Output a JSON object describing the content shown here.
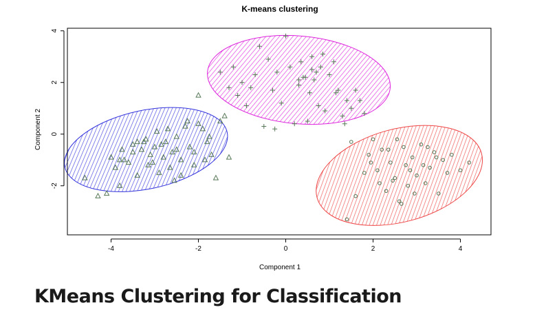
{
  "article": {
    "title": "KMeans Clustering for Classification"
  },
  "chart_data": {
    "type": "scatter",
    "title": "K-means clustering",
    "xlabel": "Component 1",
    "ylabel": "Component 2",
    "xlim": [
      -5,
      4.7
    ],
    "ylim": [
      -3.9,
      4.1
    ],
    "xticks": [
      -4,
      -2,
      0,
      2,
      4
    ],
    "yticks": [
      -2,
      0,
      2,
      4
    ],
    "grid": false,
    "legend": "none",
    "cluster_ellipses": [
      {
        "center": [
          -3.2,
          -0.6
        ],
        "semi_axes": [
          1.9,
          1.52
        ],
        "angle_deg": 12,
        "color": "#3333dd"
      },
      {
        "center": [
          0.3,
          2.1
        ],
        "semi_axes": [
          2.1,
          1.7
        ],
        "angle_deg": -5,
        "color": "#dd22dd"
      },
      {
        "center": [
          2.6,
          -1.6
        ],
        "semi_axes": [
          1.95,
          1.8
        ],
        "angle_deg": 15,
        "color": "#ee4444"
      }
    ],
    "series": [
      {
        "marker": "triangle",
        "color": "#557755",
        "x": [
          -4.6,
          -4.3,
          -4.1,
          -3.9,
          -3.8,
          -3.75,
          -3.6,
          -3.5,
          -3.4,
          -3.3,
          -3.2,
          -3.15,
          -3.1,
          -3.0,
          -2.95,
          -2.9,
          -2.8,
          -2.75,
          -2.7,
          -2.6,
          -2.55,
          -2.5,
          -2.4,
          -2.3,
          -2.2,
          -2.1,
          -2.0,
          -1.9,
          -1.8,
          -1.7,
          -1.6,
          -1.5,
          -1.4,
          -1.3,
          -2.0,
          -2.4,
          -3.5,
          -3.7,
          -2.85,
          -2.65,
          -3.25,
          -2.1,
          -1.75,
          -4.0,
          -3.05,
          -2.25,
          -1.85,
          -3.4,
          -2.5,
          -3.8
        ],
        "y": [
          -1.7,
          -2.4,
          -2.3,
          -1.3,
          -1.0,
          -0.6,
          -1.1,
          -0.4,
          -1.6,
          -0.6,
          -0.2,
          -1.2,
          -0.8,
          -0.5,
          0.1,
          -1.5,
          -0.9,
          -0.3,
          0.2,
          -0.7,
          -1.8,
          -0.1,
          -1.0,
          0.3,
          -0.5,
          -1.2,
          1.5,
          0.2,
          -0.3,
          -0.8,
          -1.7,
          0.5,
          0.7,
          -0.9,
          0.4,
          -1.6,
          -0.7,
          -1.0,
          -0.4,
          -1.3,
          -0.3,
          -0.7,
          -0.1,
          -0.9,
          -1.1,
          0.5,
          -1.0,
          -0.3,
          -0.6,
          -2.0
        ]
      },
      {
        "marker": "plus",
        "color": "#557755",
        "x": [
          -1.5,
          -1.3,
          -1.1,
          -1.0,
          -0.9,
          -0.7,
          -0.6,
          -0.5,
          -0.4,
          -0.3,
          -0.2,
          -0.1,
          0.0,
          0.1,
          0.2,
          0.3,
          0.35,
          0.4,
          0.5,
          0.55,
          0.6,
          0.65,
          0.7,
          0.75,
          0.8,
          0.9,
          1.0,
          1.1,
          1.2,
          1.3,
          1.4,
          1.5,
          1.6,
          1.7,
          1.8,
          0.3,
          -0.8,
          0.6,
          -0.25,
          1.15,
          0.85,
          -1.2,
          0.45,
          1.35
        ],
        "y": [
          2.4,
          1.8,
          1.5,
          2.0,
          1.1,
          2.3,
          3.4,
          0.3,
          2.9,
          1.7,
          2.4,
          1.2,
          3.8,
          2.6,
          0.4,
          1.9,
          2.8,
          2.2,
          0.5,
          1.6,
          3.0,
          2.1,
          2.4,
          1.1,
          2.6,
          0.9,
          2.3,
          2.8,
          1.7,
          0.7,
          1.3,
          1.0,
          1.7,
          1.3,
          0.8,
          2.1,
          1.8,
          2.5,
          0.2,
          1.6,
          3.1,
          2.6,
          2.2,
          0.4
        ]
      },
      {
        "marker": "circle",
        "color": "#557755",
        "x": [
          1.4,
          1.6,
          1.8,
          1.9,
          2.0,
          2.1,
          2.2,
          2.3,
          2.4,
          2.5,
          2.6,
          2.7,
          2.75,
          2.8,
          2.9,
          3.0,
          3.1,
          3.2,
          3.3,
          3.4,
          3.5,
          3.6,
          3.7,
          3.8,
          4.0,
          4.2,
          2.35,
          2.55,
          2.65,
          3.15,
          1.5,
          2.95,
          2.45,
          3.45,
          2.15,
          3.25,
          2.85,
          1.95
        ],
        "y": [
          -3.3,
          -2.4,
          -1.5,
          -0.8,
          -0.2,
          -1.4,
          -0.6,
          -2.2,
          -1.1,
          -1.7,
          -2.6,
          -0.5,
          -1.2,
          -2.0,
          -0.9,
          -1.6,
          -0.4,
          -1.9,
          -1.3,
          -0.7,
          -2.3,
          -1.0,
          -1.5,
          -0.8,
          -1.4,
          -1.1,
          -0.6,
          -0.2,
          -2.7,
          -1.2,
          -0.3,
          -2.3,
          -1.8,
          -0.9,
          -1.9,
          -0.5,
          -1.4,
          -1.1
        ]
      }
    ]
  }
}
